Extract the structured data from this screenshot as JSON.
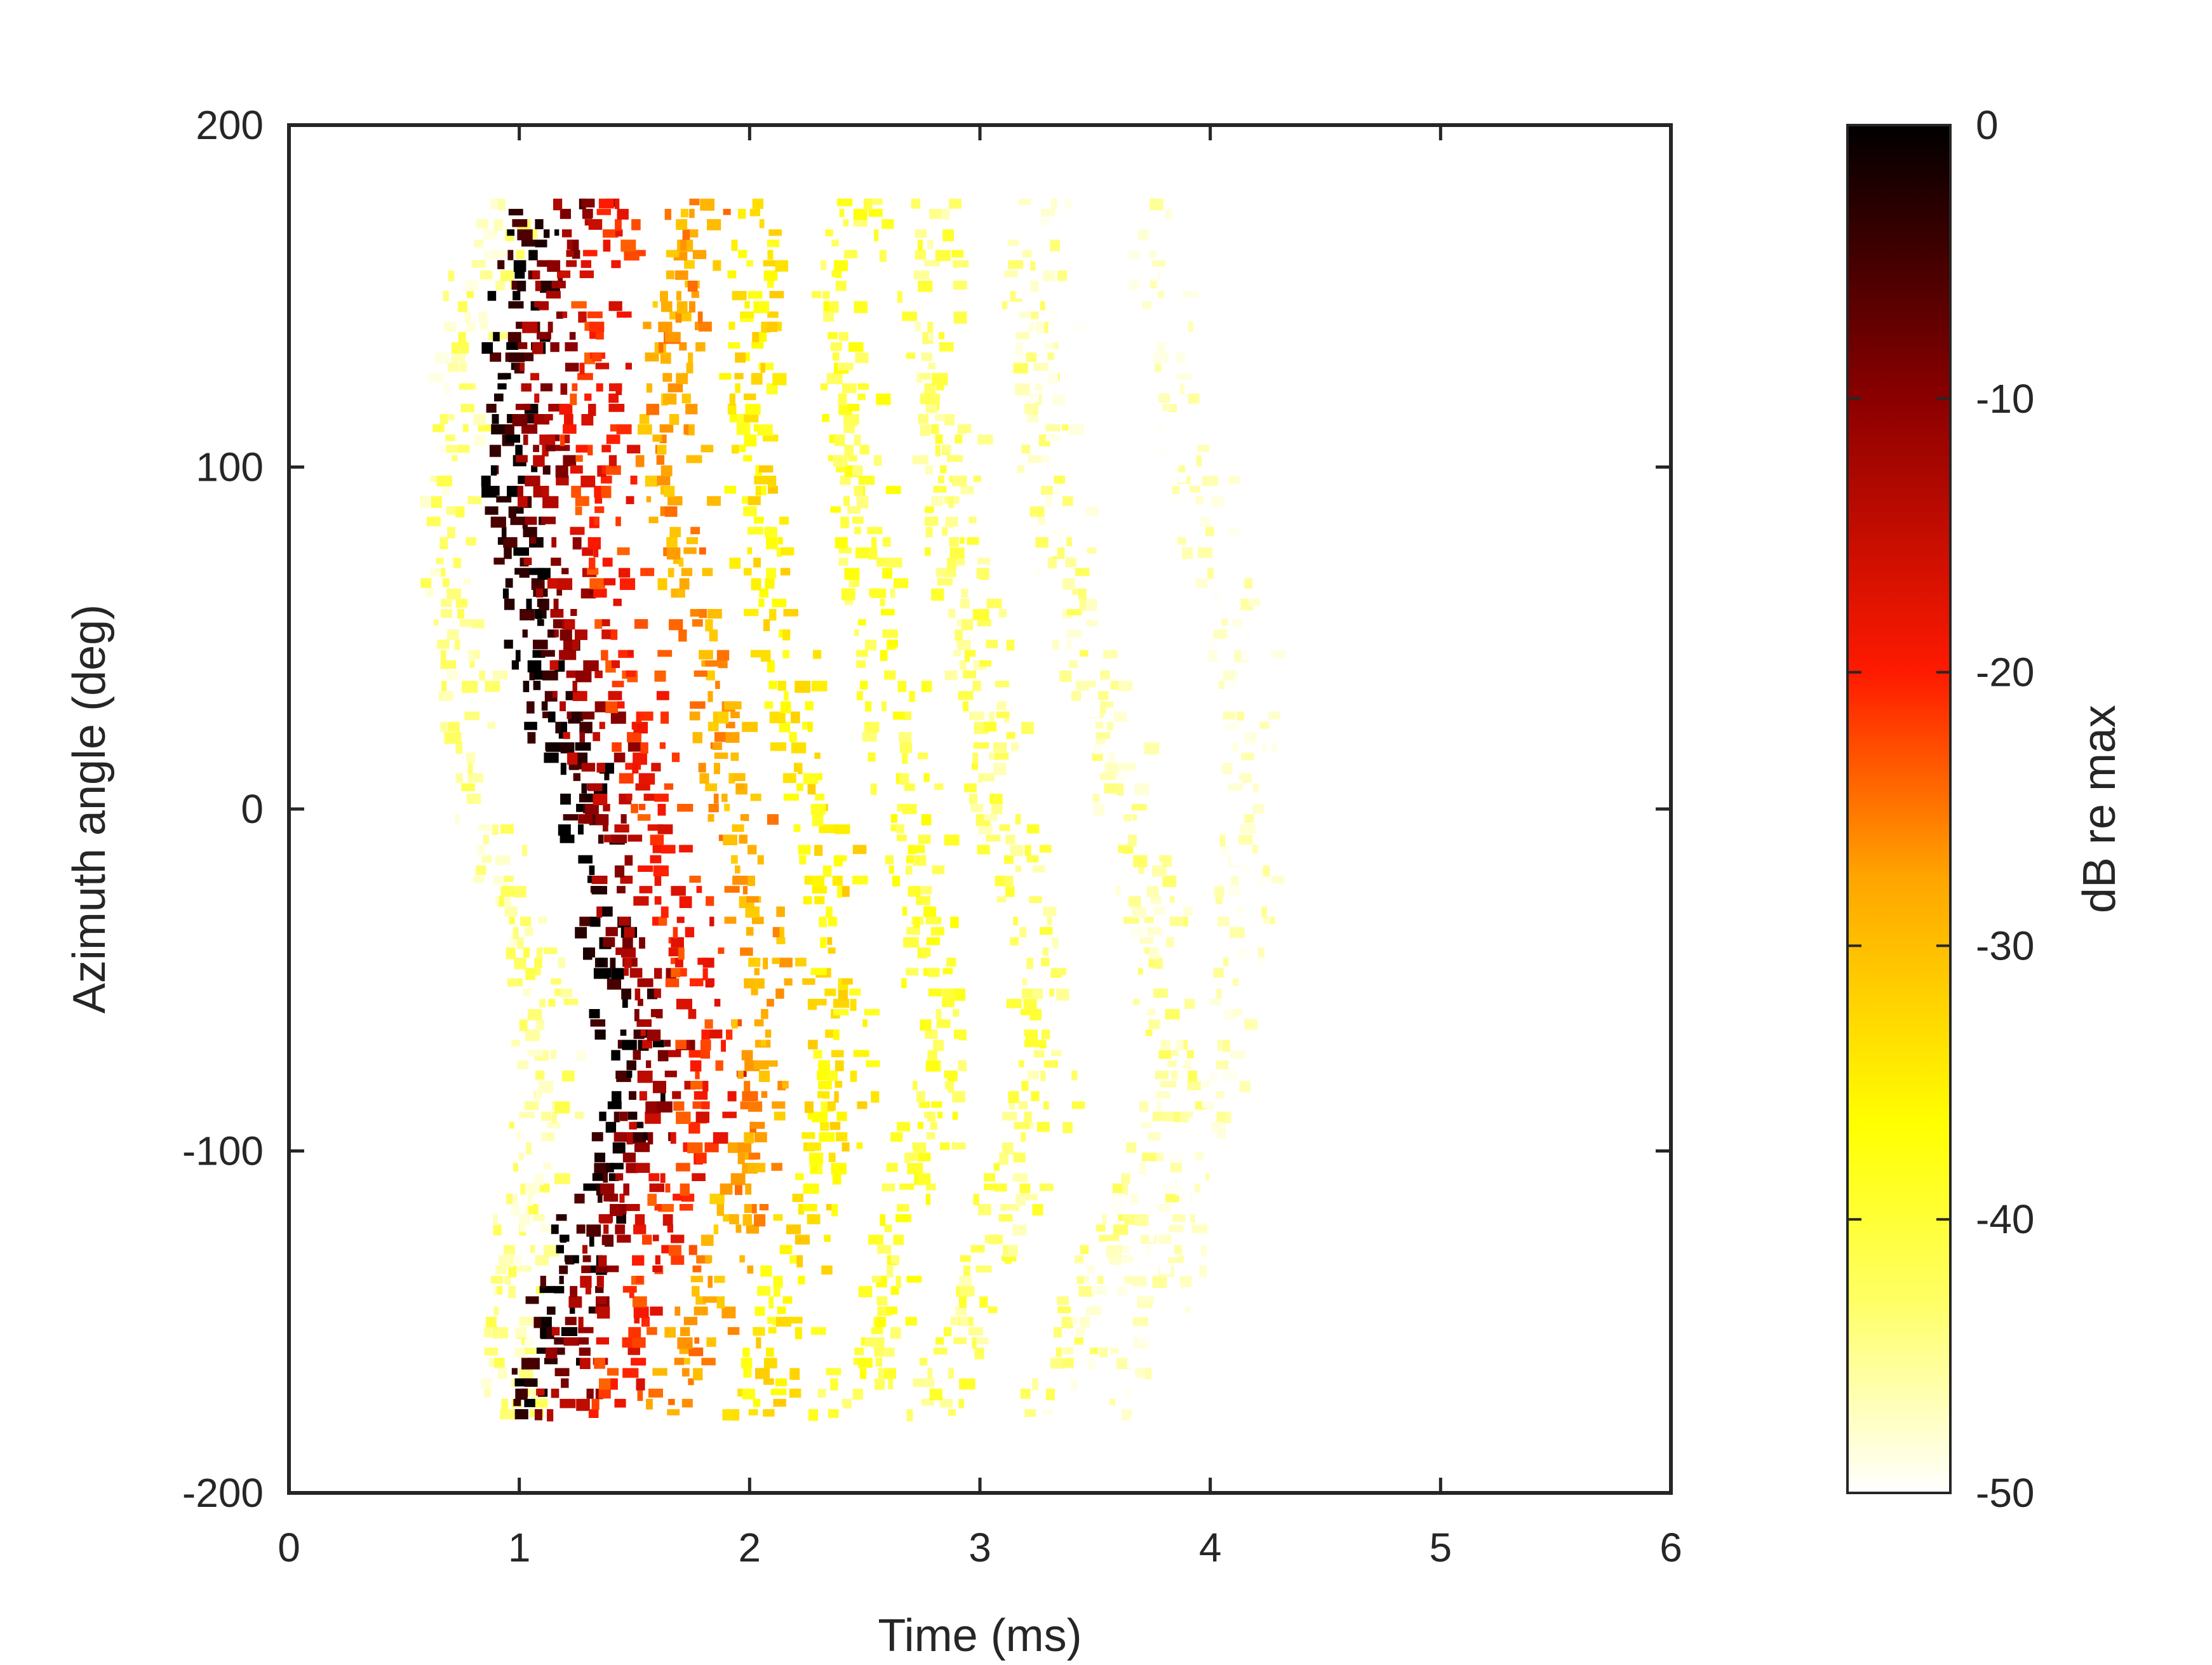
{
  "chart_data": {
    "type": "heatmap",
    "title": "",
    "xlabel": "Time (ms)",
    "ylabel": "Azimuth angle (deg)",
    "xlim": [
      0,
      6
    ],
    "ylim": [
      -200,
      200
    ],
    "x_ticks": [
      0,
      1,
      2,
      3,
      4,
      5,
      6
    ],
    "x_tick_labels": [
      "0",
      "1",
      "2",
      "3",
      "4",
      "5",
      "6"
    ],
    "y_ticks": [
      -200,
      -100,
      0,
      100,
      200
    ],
    "y_tick_labels": [
      "-200",
      "-100",
      "0",
      "100",
      "200"
    ],
    "grid": false,
    "data_azimuth_range": [
      -177,
      177
    ],
    "colorbar": {
      "label": "dB re max",
      "limits": [
        -50,
        0
      ],
      "ticks": [
        0,
        -10,
        -20,
        -30,
        -40,
        -50
      ],
      "tick_labels": [
        "0",
        "-10",
        "-20",
        "-30",
        "-40",
        "-50"
      ],
      "colormap": "hot (reversed): white → yellow → orange → red → black",
      "colors": [
        "#ffffff",
        "#ffff66",
        "#ffff00",
        "#ffa500",
        "#ff1a00",
        "#8b0000",
        "#000000"
      ]
    },
    "wavefronts": [
      {
        "level_db": -45,
        "azimuth": [
          -177,
          -150,
          -110,
          -80,
          -40,
          0,
          40,
          80,
          110,
          150,
          177
        ],
        "time_ms": [
          0.9,
          0.84,
          0.95,
          1.05,
          0.95,
          0.75,
          0.65,
          0.6,
          0.62,
          0.72,
          0.85
        ]
      },
      {
        "level_db": -2,
        "azimuth": [
          -177,
          -150,
          -110,
          -80,
          -40,
          0,
          40,
          80,
          110,
          150,
          177
        ],
        "time_ms": [
          0.98,
          1.05,
          1.25,
          1.4,
          1.3,
          1.2,
          1.0,
          0.9,
          0.86,
          0.9,
          1.02
        ]
      },
      {
        "level_db": -12,
        "azimuth": [
          -177,
          -150,
          -110,
          -80,
          -40,
          0,
          40,
          80,
          110,
          150,
          177
        ],
        "time_ms": [
          1.1,
          1.2,
          1.38,
          1.55,
          1.42,
          1.3,
          1.18,
          1.05,
          1.02,
          1.06,
          1.2
        ]
      },
      {
        "level_db": -20,
        "azimuth": [
          -177,
          -150,
          -110,
          -80,
          -40,
          0,
          40,
          80,
          110,
          150,
          177
        ],
        "time_ms": [
          1.3,
          1.4,
          1.6,
          1.75,
          1.62,
          1.5,
          1.4,
          1.28,
          1.22,
          1.28,
          1.4
        ]
      },
      {
        "level_db": -28,
        "azimuth": [
          -177,
          -150,
          -110,
          -80,
          -40,
          0,
          40,
          80,
          110,
          150,
          177
        ],
        "time_ms": [
          1.55,
          1.7,
          1.9,
          2.0,
          1.95,
          1.85,
          1.75,
          1.6,
          1.55,
          1.6,
          1.68
        ]
      },
      {
        "level_db": -35,
        "azimuth": [
          -177,
          -150,
          -110,
          -80,
          -40,
          0,
          40,
          80,
          110,
          150,
          177
        ],
        "time_ms": [
          1.9,
          2.05,
          2.2,
          2.3,
          2.25,
          2.2,
          2.05,
          1.95,
          1.9,
          1.95,
          2.0
        ]
      },
      {
        "level_db": -40,
        "azimuth": [
          -177,
          -150,
          -110,
          -80,
          -40,
          0,
          40,
          80,
          110,
          150,
          177
        ],
        "time_ms": [
          2.3,
          2.5,
          2.6,
          2.75,
          2.7,
          2.6,
          2.5,
          2.4,
          2.35,
          2.3,
          2.4
        ]
      },
      {
        "level_db": -43,
        "azimuth": [
          -177,
          -150,
          -110,
          -80,
          -40,
          0,
          40,
          80,
          110,
          150,
          177
        ],
        "time_ms": [
          2.7,
          2.85,
          3.05,
          3.2,
          3.15,
          3.0,
          2.9,
          2.8,
          2.75,
          2.7,
          2.75
        ]
      },
      {
        "level_db": -46,
        "azimuth": [
          -177,
          -150,
          -110,
          -80,
          -40,
          0,
          40,
          80,
          110,
          150,
          177
        ],
        "time_ms": [
          3.2,
          3.35,
          3.6,
          3.75,
          3.7,
          3.55,
          3.4,
          3.25,
          3.2,
          3.15,
          3.2
        ]
      },
      {
        "level_db": -49,
        "azimuth": [
          -177,
          -150,
          -110,
          -80,
          -40,
          0,
          40,
          80,
          110,
          150,
          177
        ],
        "time_ms": [
          3.5,
          3.65,
          3.85,
          4.0,
          4.05,
          4.1,
          4.05,
          3.9,
          3.8,
          3.7,
          3.6
        ]
      }
    ]
  }
}
